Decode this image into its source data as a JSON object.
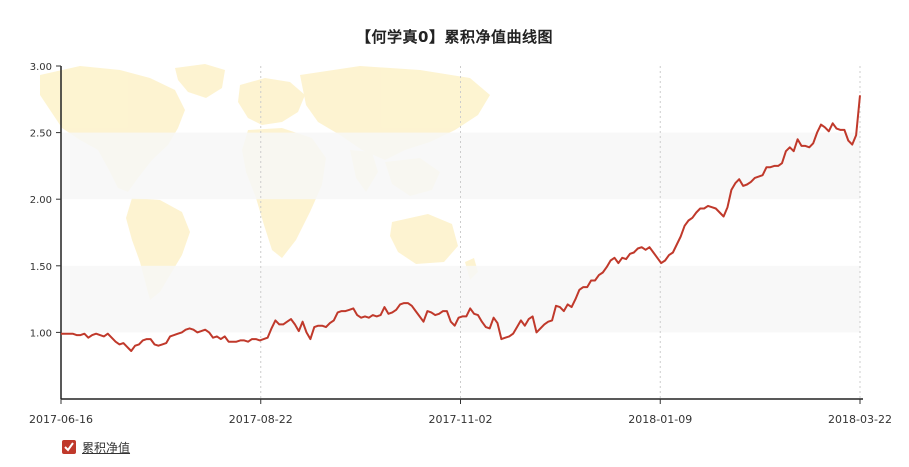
{
  "chart_data": {
    "type": "line",
    "title": "【何学真0】累积净值曲线图",
    "xlabel": "",
    "ylabel": "",
    "ylim": [
      0.5,
      3.0
    ],
    "yticks": [
      "1.00",
      "1.50",
      "2.00",
      "2.50",
      "3.00"
    ],
    "xticks": [
      "2017-06-16",
      "2017-08-22",
      "2017-11-02",
      "2018-01-09",
      "2018-03-22"
    ],
    "grid": "vertical-dotted",
    "legend_position": "bottom-left",
    "colors": {
      "line": "#c0392b",
      "band": "#f7f7f7",
      "map": "#fdf3cf"
    },
    "series": [
      {
        "name": "累积净值",
        "values": [
          0.99,
          0.99,
          0.99,
          0.99,
          0.98,
          0.98,
          0.99,
          0.96,
          0.98,
          0.99,
          0.98,
          0.97,
          0.99,
          0.96,
          0.93,
          0.91,
          0.92,
          0.89,
          0.86,
          0.9,
          0.91,
          0.94,
          0.95,
          0.95,
          0.91,
          0.9,
          0.91,
          0.92,
          0.97,
          0.98,
          0.99,
          1.0,
          1.02,
          1.03,
          1.02,
          1.0,
          1.01,
          1.02,
          1.0,
          0.96,
          0.97,
          0.95,
          0.97,
          0.93,
          0.93,
          0.93,
          0.94,
          0.94,
          0.93,
          0.95,
          0.95,
          0.94,
          0.95,
          0.96,
          1.03,
          1.09,
          1.06,
          1.06,
          1.08,
          1.1,
          1.06,
          1.01,
          1.08,
          1.0,
          0.95,
          1.04,
          1.05,
          1.05,
          1.04,
          1.07,
          1.09,
          1.15,
          1.16,
          1.16,
          1.17,
          1.18,
          1.13,
          1.11,
          1.12,
          1.11,
          1.13,
          1.12,
          1.13,
          1.19,
          1.14,
          1.15,
          1.17,
          1.21,
          1.22,
          1.22,
          1.2,
          1.16,
          1.12,
          1.08,
          1.16,
          1.15,
          1.13,
          1.14,
          1.16,
          1.16,
          1.08,
          1.05,
          1.11,
          1.12,
          1.12,
          1.18,
          1.14,
          1.13,
          1.08,
          1.04,
          1.03,
          1.11,
          1.07,
          0.95,
          0.96,
          0.97,
          0.99,
          1.04,
          1.09,
          1.05,
          1.1,
          1.12,
          1.0,
          1.03,
          1.06,
          1.08,
          1.09,
          1.2,
          1.19,
          1.16,
          1.21,
          1.19,
          1.25,
          1.32,
          1.34,
          1.34,
          1.39,
          1.39,
          1.43,
          1.45,
          1.49,
          1.54,
          1.56,
          1.52,
          1.56,
          1.55,
          1.59,
          1.6,
          1.63,
          1.64,
          1.62,
          1.64,
          1.6,
          1.56,
          1.52,
          1.54,
          1.58,
          1.6,
          1.66,
          1.72,
          1.8,
          1.84,
          1.86,
          1.9,
          1.93,
          1.93,
          1.95,
          1.94,
          1.93,
          1.9,
          1.87,
          1.94,
          2.07,
          2.12,
          2.15,
          2.1,
          2.11,
          2.13,
          2.16,
          2.17,
          2.18,
          2.24,
          2.24,
          2.25,
          2.25,
          2.27,
          2.36,
          2.39,
          2.36,
          2.45,
          2.4,
          2.4,
          2.39,
          2.42,
          2.5,
          2.56,
          2.54,
          2.51,
          2.57,
          2.53,
          2.52,
          2.52,
          2.44,
          2.41,
          2.48,
          2.78
        ]
      }
    ]
  }
}
